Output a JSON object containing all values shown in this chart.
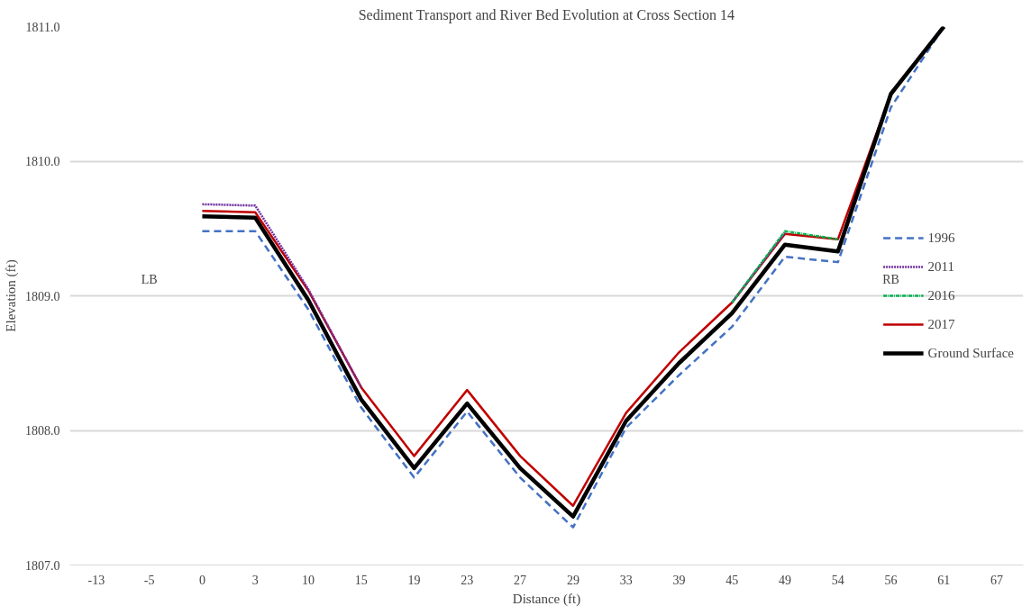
{
  "chart_data": {
    "type": "line",
    "title": "Sediment Transport and River Bed Evolution at Cross Section 14",
    "xlabel": "Distance (ft)",
    "ylabel": "Elevation (ft)",
    "categories": [
      "-13",
      "-5",
      "0",
      "3",
      "10",
      "15",
      "19",
      "23",
      "27",
      "29",
      "33",
      "39",
      "45",
      "49",
      "54",
      "56",
      "61",
      "67"
    ],
    "series": [
      {
        "name": "1996",
        "color": "#4472c4",
        "line_style": "dashed",
        "values": [
          null,
          null,
          1809.48,
          1809.48,
          1808.9,
          1808.17,
          1807.65,
          1808.14,
          1807.65,
          1807.28,
          1808.02,
          1808.41,
          1808.77,
          1809.29,
          1809.25,
          1810.4,
          1811.0,
          null
        ]
      },
      {
        "name": "2011",
        "color": "#7030a0",
        "line_style": "dotted",
        "values": [
          null,
          null,
          1809.68,
          1809.67,
          1809.05,
          1808.32,
          null,
          null,
          null,
          null,
          null,
          null,
          1808.95,
          1809.47,
          null,
          null,
          null,
          null
        ]
      },
      {
        "name": "2016",
        "color": "#00b050",
        "line_style": "dashdot",
        "values": [
          null,
          null,
          null,
          null,
          null,
          null,
          null,
          null,
          null,
          null,
          null,
          null,
          1808.95,
          1809.48,
          1809.42,
          null,
          null,
          null
        ]
      },
      {
        "name": "2017",
        "color": "#c00000",
        "line_style": "solid",
        "values": [
          null,
          null,
          1809.63,
          1809.62,
          1809.04,
          1808.32,
          1807.81,
          1808.3,
          1807.81,
          1807.44,
          1808.13,
          1808.58,
          1808.95,
          1809.46,
          1809.42,
          1810.5,
          1811.0,
          null
        ]
      },
      {
        "name": "Ground Surface",
        "color": "#000000",
        "line_style": "solid",
        "values": [
          null,
          null,
          1809.59,
          1809.58,
          1808.97,
          1808.23,
          1807.72,
          1808.2,
          1807.72,
          1807.36,
          1808.07,
          1808.5,
          1808.87,
          1809.38,
          1809.33,
          1810.5,
          1811.0,
          null
        ]
      }
    ],
    "ylim": [
      1807,
      1811
    ],
    "yticks": [
      {
        "value": 1807,
        "label": "1807.0"
      },
      {
        "value": 1808,
        "label": "1808.0"
      },
      {
        "value": 1809,
        "label": "1809.0"
      },
      {
        "value": 1810,
        "label": "1810.0"
      },
      {
        "value": 1811,
        "label": "1811.0"
      }
    ],
    "grid": "y",
    "legend": "right",
    "marker": "none",
    "annotations": [
      "LB",
      "RB"
    ]
  }
}
